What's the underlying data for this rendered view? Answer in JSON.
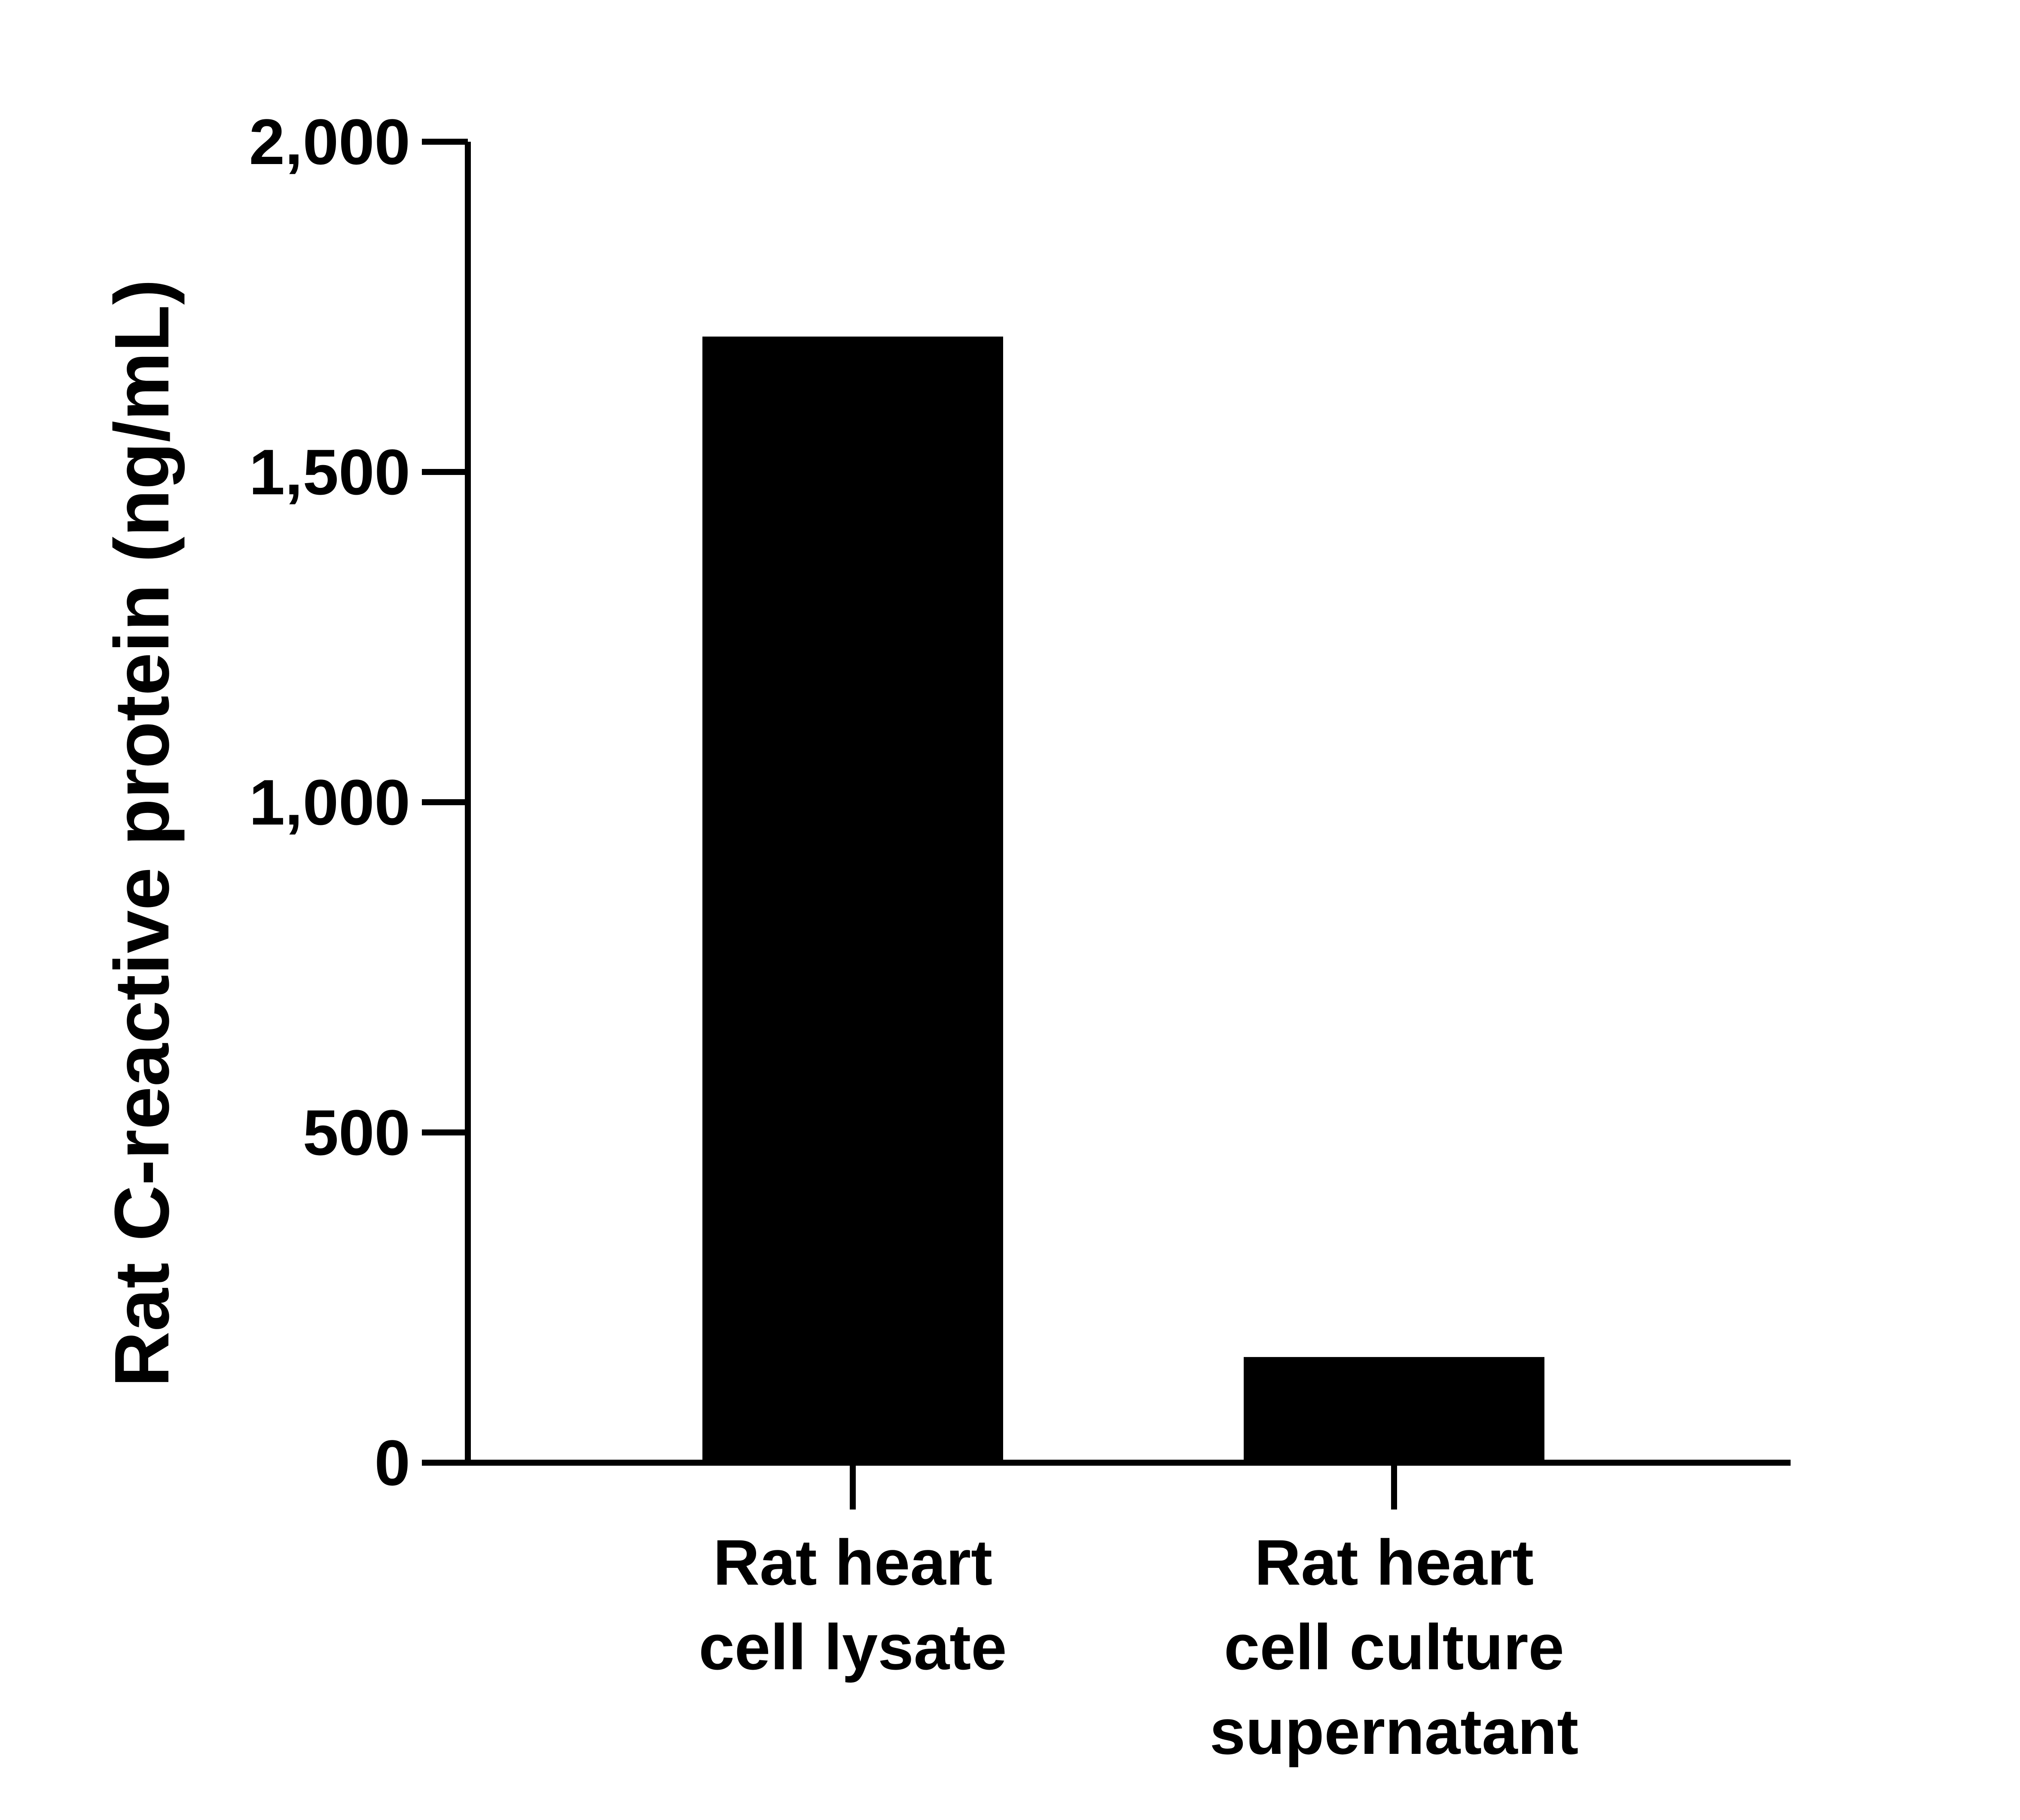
{
  "chart_data": {
    "type": "bar",
    "categories": [
      [
        "Rat heart",
        "cell lysate"
      ],
      [
        "Rat heart",
        "cell culture",
        "supernatant"
      ]
    ],
    "values": [
      1705,
      160
    ],
    "title": "",
    "xlabel": "",
    "ylabel": "Rat C-reactive protein (ng/mL)",
    "ylim": [
      0,
      2000
    ],
    "yticks": [
      0,
      500,
      1000,
      1500,
      2000
    ],
    "ytick_labels": [
      "0",
      "500",
      "1,000",
      "1,500",
      "2,000"
    ],
    "bar_color": "#000000",
    "grid": false,
    "legend": "none"
  }
}
